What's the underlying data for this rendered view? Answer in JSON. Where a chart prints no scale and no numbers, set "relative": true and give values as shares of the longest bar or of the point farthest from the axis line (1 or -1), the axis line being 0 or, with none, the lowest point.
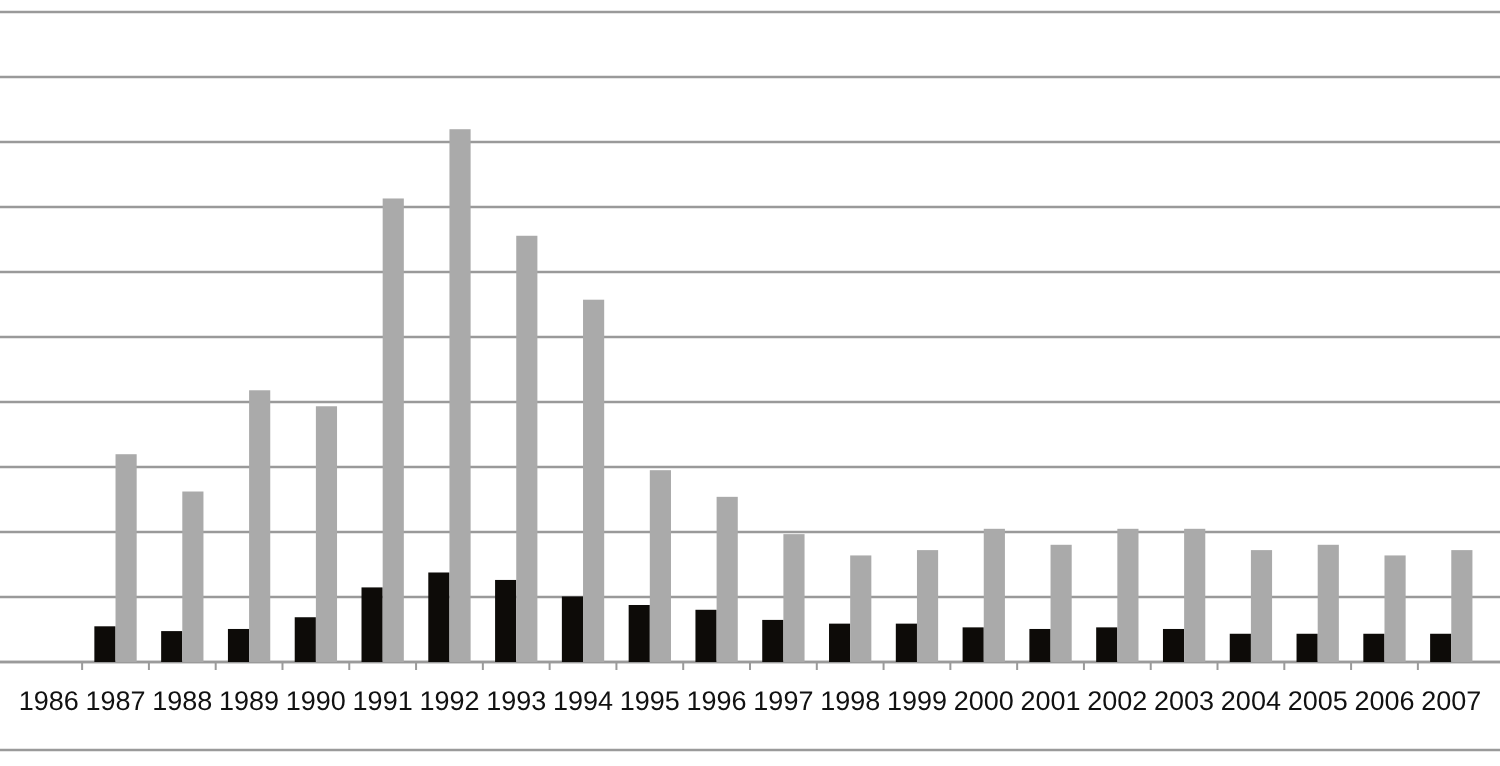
{
  "chart_data": {
    "type": "bar",
    "relative": true,
    "grid": true,
    "categories": [
      "1986",
      "1987",
      "1988",
      "1989",
      "1990",
      "1991",
      "1992",
      "1993",
      "1994",
      "1995",
      "1996",
      "1997",
      "1998",
      "1999",
      "2000",
      "2001",
      "2002",
      "2003",
      "2004",
      "2005",
      "2006",
      "2007"
    ],
    "series": [
      {
        "color": "#0d0b08",
        "values": [
          null,
          0.067,
          0.058,
          0.062,
          0.084,
          0.14,
          0.168,
          0.154,
          0.123,
          0.107,
          0.098,
          0.079,
          0.072,
          0.072,
          0.065,
          0.062,
          0.065,
          0.062,
          0.053,
          0.053,
          0.053,
          0.053
        ]
      },
      {
        "color": "#aaaaaa",
        "values": [
          null,
          0.39,
          0.32,
          0.51,
          0.48,
          0.87,
          1,
          0.8,
          0.68,
          0.36,
          0.31,
          0.24,
          0.2,
          0.21,
          0.25,
          0.22,
          0.25,
          0.25,
          0.21,
          0.22,
          0.2,
          0.21
        ]
      }
    ]
  }
}
